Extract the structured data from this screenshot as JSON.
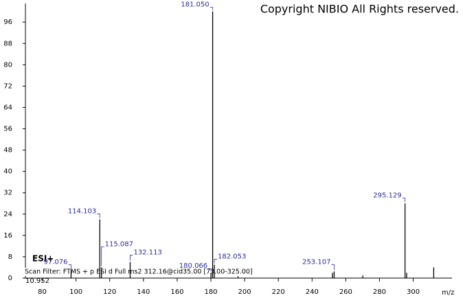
{
  "chart_data": {
    "type": "spectrum",
    "copyright": "Copyright NIBIO All Rights reserved.",
    "ionization": "ESI+",
    "scan_filter": "Scan Filter: FTMS + p ESI d Full ms2 312.16@cid35.00 [73.00-325.00]",
    "retention_time": "10.952",
    "x_label": "m/z",
    "x": [
      97.076,
      114.103,
      115.087,
      132.113,
      180.066,
      181.05,
      182.053,
      196.1,
      252.1,
      253.107,
      270.1,
      295.129,
      296.1,
      312.16
    ],
    "values": [
      3,
      22,
      4,
      6,
      2,
      100,
      5,
      0.7,
      2,
      2.5,
      1,
      28,
      2,
      4
    ],
    "peak_labels": [
      "97.076",
      "114.103",
      "115.087",
      "132.113",
      "180.066",
      "181.050",
      "182.053",
      null,
      null,
      "253.107",
      null,
      "295.129",
      null,
      null
    ],
    "color": "#000000",
    "label_color": "#2a2a9a",
    "xlim": [
      70,
      323
    ],
    "xticks": [
      80,
      100,
      120,
      140,
      160,
      180,
      200,
      220,
      240,
      260,
      280,
      300
    ],
    "ylim": [
      0,
      103
    ],
    "yticks": [
      0,
      8,
      16,
      24,
      32,
      40,
      48,
      56,
      64,
      72,
      80,
      88,
      96
    ]
  }
}
